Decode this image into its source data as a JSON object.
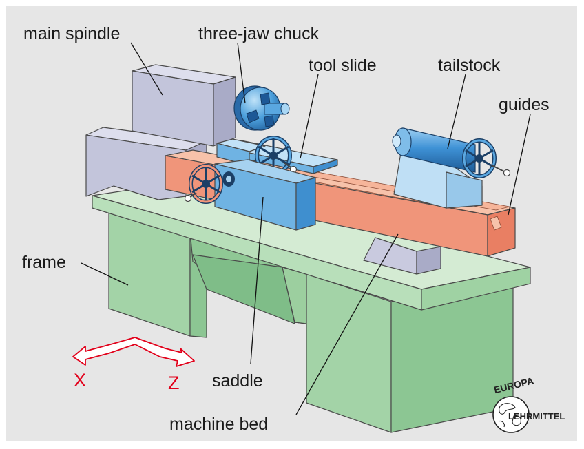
{
  "labels": {
    "main_spindle": "main spindle",
    "three_jaw_chuck": "three-jaw chuck",
    "tool_slide": "tool slide",
    "tailstock": "tailstock",
    "guides": "guides",
    "frame": "frame",
    "saddle": "saddle",
    "machine_bed": "machine bed"
  },
  "axes": {
    "x": "X",
    "z": "Z"
  },
  "logo": {
    "top": "EUROPA",
    "bottom": "LEHRMITTEL"
  },
  "colors": {
    "background": "#e6e6e6",
    "frame": "#a4d4a8",
    "headstock": "#c4c6dc",
    "blue_parts": "#6fb3e3",
    "bed": "#f0957a",
    "axis_arrows": "#e2001a"
  }
}
